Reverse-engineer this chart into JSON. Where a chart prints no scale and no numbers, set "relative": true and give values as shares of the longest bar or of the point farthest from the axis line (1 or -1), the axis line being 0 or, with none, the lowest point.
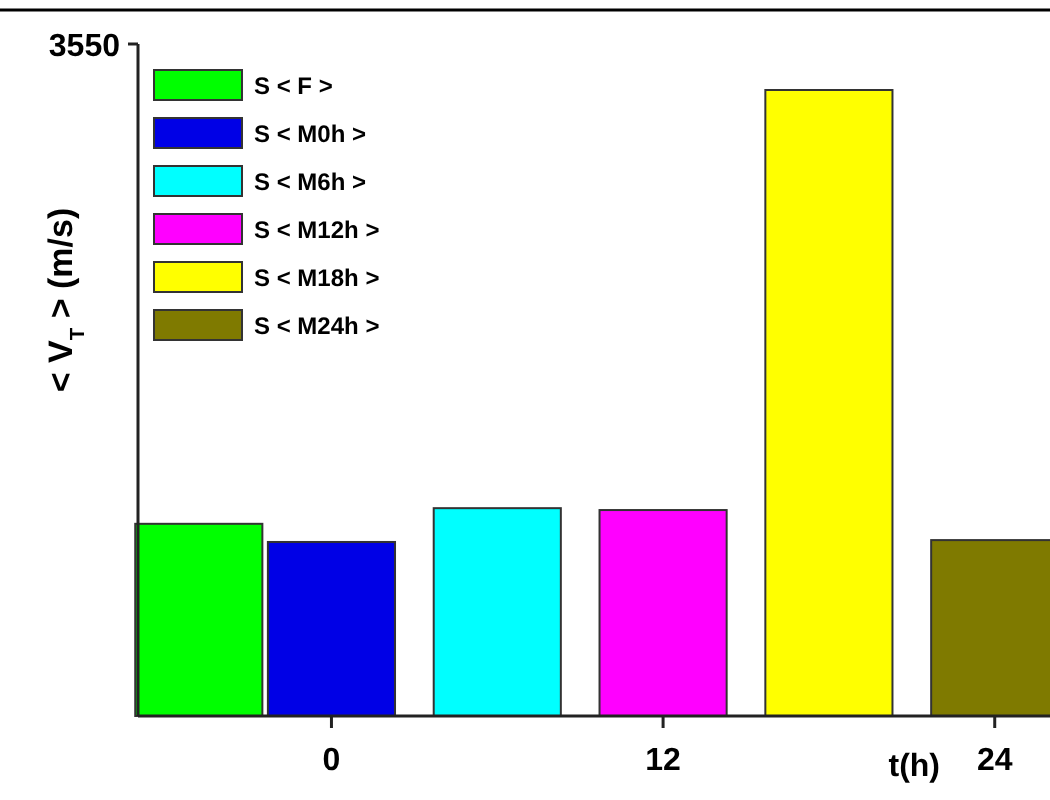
{
  "chart_data": {
    "type": "bar",
    "ylabel": "< V$_{T}$ > (m/s)",
    "xlabel": "t(h)",
    "relative": true,
    "annotations": [
      "3550"
    ],
    "xlim": [
      -7,
      26
    ],
    "xticks": [
      0,
      12,
      24
    ],
    "legend": "top left",
    "series": [
      {
        "name": "S < F >",
        "color": "#00ff00",
        "x": [
          -4.8
        ],
        "values": [
          0.307
        ]
      },
      {
        "name": "S < M0h >",
        "color": "#0000e6",
        "x": [
          0
        ],
        "values": [
          0.278
        ]
      },
      {
        "name": "S < M6h >",
        "color": "#00ffff",
        "x": [
          6
        ],
        "values": [
          0.332
        ]
      },
      {
        "name": "S < M12h >",
        "color": "#ff00ff",
        "x": [
          12
        ],
        "values": [
          0.329
        ]
      },
      {
        "name": "S < M18h >",
        "color": "#ffff00",
        "x": [
          18
        ],
        "values": [
          1
        ]
      },
      {
        "name": "S < M24h >",
        "color": "#7f7a00",
        "x": [
          24
        ],
        "values": [
          0.281
        ]
      }
    ]
  }
}
